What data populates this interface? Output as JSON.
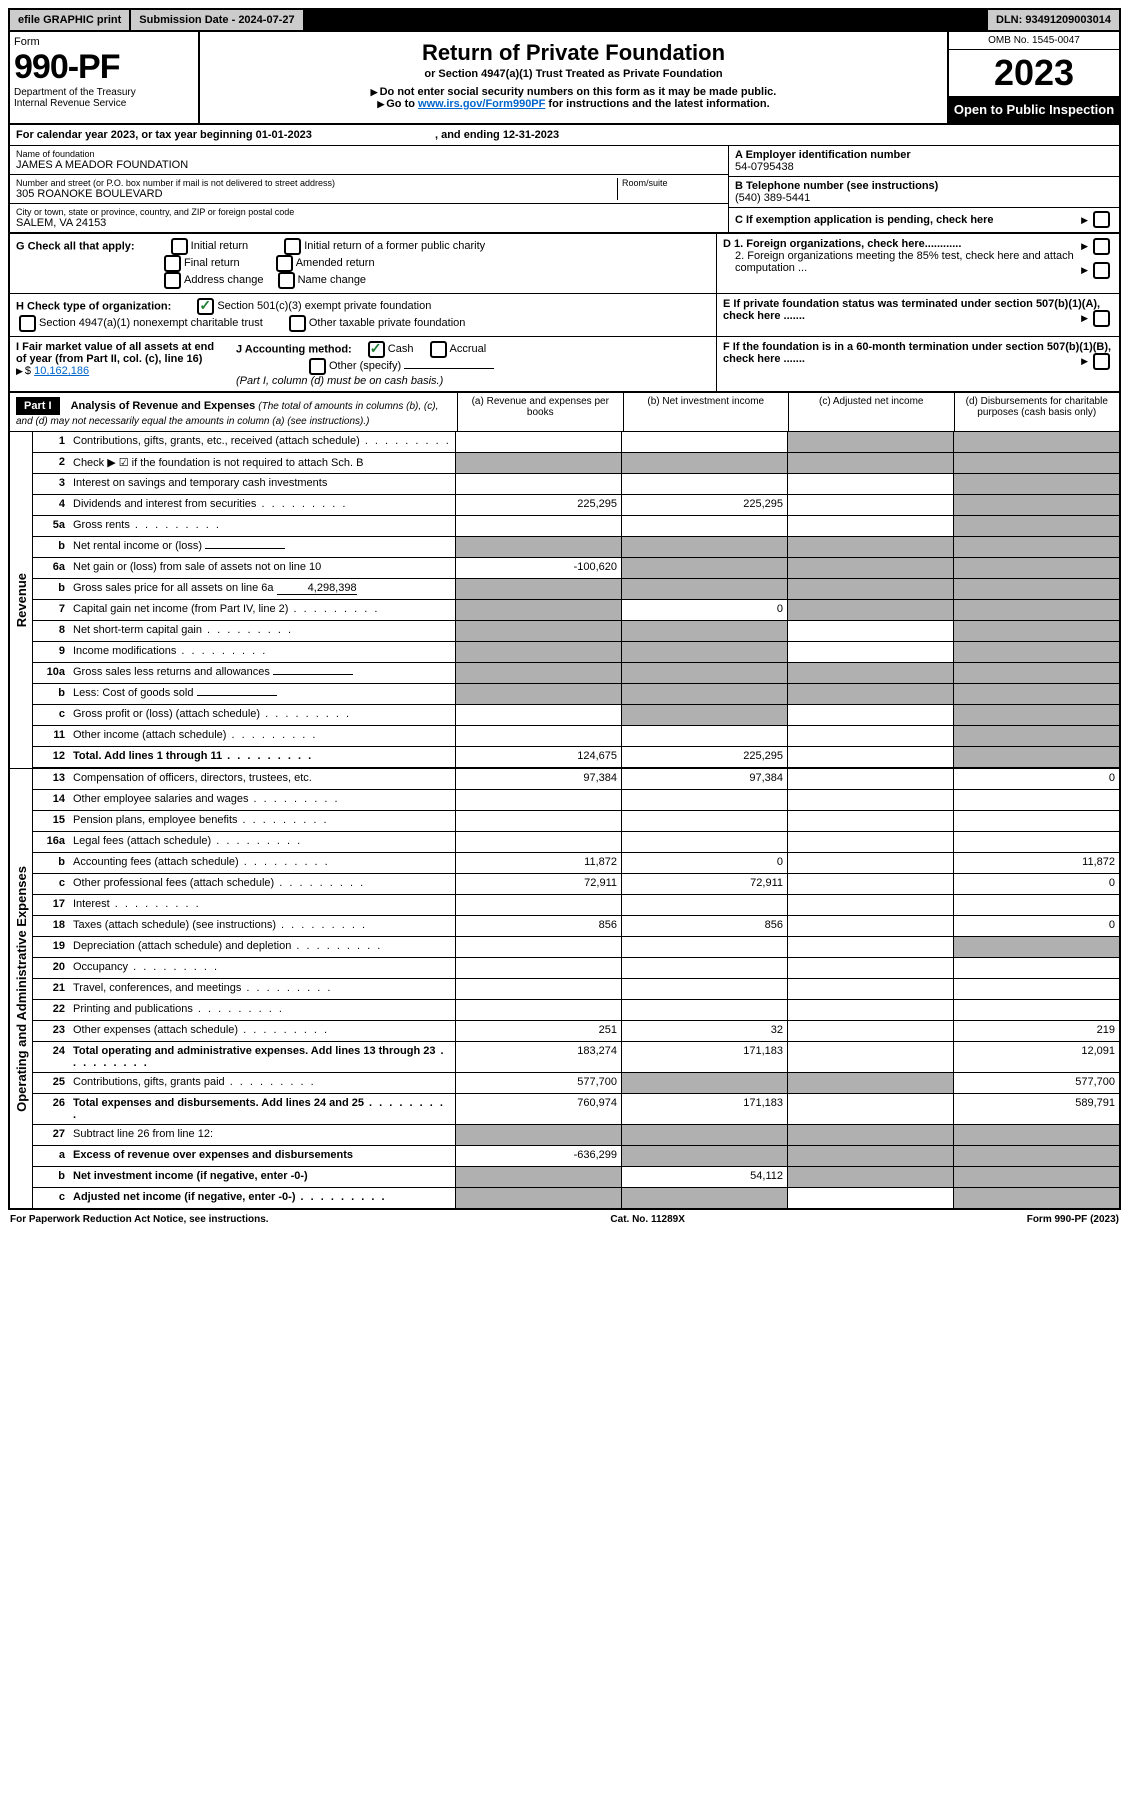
{
  "topbar": {
    "efile": "efile GRAPHIC print",
    "submission": "Submission Date - 2024-07-27",
    "dln": "DLN: 93491209003014"
  },
  "header": {
    "form_label": "Form",
    "form_no": "990-PF",
    "dept": "Department of the Treasury",
    "irs": "Internal Revenue Service",
    "title": "Return of Private Foundation",
    "subtitle": "or Section 4947(a)(1) Trust Treated as Private Foundation",
    "note1": "Do not enter social security numbers on this form as it may be made public.",
    "note2_pre": "Go to ",
    "note2_link": "www.irs.gov/Form990PF",
    "note2_post": " for instructions and the latest information.",
    "omb": "OMB No. 1545-0047",
    "year": "2023",
    "open": "Open to Public Inspection"
  },
  "calyear": {
    "text": "For calendar year 2023, or tax year beginning 01-01-2023",
    "ending": ", and ending 12-31-2023"
  },
  "info": {
    "name_label": "Name of foundation",
    "name": "JAMES A MEADOR FOUNDATION",
    "addr_label": "Number and street (or P.O. box number if mail is not delivered to street address)",
    "addr": "305 ROANOKE BOULEVARD",
    "room_label": "Room/suite",
    "city_label": "City or town, state or province, country, and ZIP or foreign postal code",
    "city": "SALEM, VA  24153",
    "ein_label": "A Employer identification number",
    "ein": "54-0795438",
    "phone_label": "B Telephone number (see instructions)",
    "phone": "(540) 389-5441",
    "c_label": "C If exemption application is pending, check here"
  },
  "checks": {
    "g_label": "G Check all that apply:",
    "g1": "Initial return",
    "g2": "Initial return of a former public charity",
    "g3": "Final return",
    "g4": "Amended return",
    "g5": "Address change",
    "g6": "Name change",
    "h_label": "H Check type of organization:",
    "h1": "Section 501(c)(3) exempt private foundation",
    "h2": "Section 4947(a)(1) nonexempt charitable trust",
    "h3": "Other taxable private foundation",
    "i_label": "I Fair market value of all assets at end of year (from Part II, col. (c), line 16) ",
    "i_val": "10,162,186",
    "j_label": "J Accounting method:",
    "j1": "Cash",
    "j2": "Accrual",
    "j3": "Other (specify)",
    "j_note": "(Part I, column (d) must be on cash basis.)",
    "d1": "D 1. Foreign organizations, check here............",
    "d2": "2. Foreign organizations meeting the 85% test, check here and attach computation ...",
    "e_label": "E  If private foundation status was terminated under section 507(b)(1)(A), check here .......",
    "f_label": "F  If the foundation is in a 60-month termination under section 507(b)(1)(B), check here ......."
  },
  "part1": {
    "label": "Part I",
    "title": "Analysis of Revenue and Expenses",
    "title_note": " (The total of amounts in columns (b), (c), and (d) may not necessarily equal the amounts in column (a) (see instructions).)",
    "col_a": "(a)  Revenue and expenses per books",
    "col_b": "(b)  Net investment income",
    "col_c": "(c)  Adjusted net income",
    "col_d": "(d)  Disbursements for charitable purposes (cash basis only)"
  },
  "side": {
    "revenue": "Revenue",
    "expenses": "Operating and Administrative Expenses"
  },
  "rows": [
    {
      "n": "1",
      "d": "Contributions, gifts, grants, etc., received (attach schedule)",
      "a": "",
      "b": "",
      "c": "g",
      "dd": "g"
    },
    {
      "n": "2",
      "d": "Check ▶ ☑ if the foundation is not required to attach Sch. B",
      "a": "g",
      "b": "g",
      "c": "g",
      "dd": "g",
      "nodots": true
    },
    {
      "n": "3",
      "d": "Interest on savings and temporary cash investments",
      "a": "",
      "b": "",
      "c": "",
      "dd": "g",
      "nodots": true
    },
    {
      "n": "4",
      "d": "Dividends and interest from securities",
      "a": "225,295",
      "b": "225,295",
      "c": "",
      "dd": "g"
    },
    {
      "n": "5a",
      "d": "Gross rents",
      "a": "",
      "b": "",
      "c": "",
      "dd": "g"
    },
    {
      "n": "b",
      "d": "Net rental income or (loss)",
      "a": "g",
      "b": "g",
      "c": "g",
      "dd": "g",
      "nodots": true,
      "inline": true
    },
    {
      "n": "6a",
      "d": "Net gain or (loss) from sale of assets not on line 10",
      "a": "-100,620",
      "b": "g",
      "c": "g",
      "dd": "g",
      "nodots": true
    },
    {
      "n": "b",
      "d": "Gross sales price for all assets on line 6a",
      "a": "g",
      "b": "g",
      "c": "g",
      "dd": "g",
      "nodots": true,
      "inline": true,
      "inlineval": "4,298,398"
    },
    {
      "n": "7",
      "d": "Capital gain net income (from Part IV, line 2)",
      "a": "g",
      "b": "0",
      "c": "g",
      "dd": "g"
    },
    {
      "n": "8",
      "d": "Net short-term capital gain",
      "a": "g",
      "b": "g",
      "c": "",
      "dd": "g"
    },
    {
      "n": "9",
      "d": "Income modifications",
      "a": "g",
      "b": "g",
      "c": "",
      "dd": "g"
    },
    {
      "n": "10a",
      "d": "Gross sales less returns and allowances",
      "a": "g",
      "b": "g",
      "c": "g",
      "dd": "g",
      "nodots": true,
      "inline": true
    },
    {
      "n": "b",
      "d": "Less: Cost of goods sold",
      "a": "g",
      "b": "g",
      "c": "g",
      "dd": "g",
      "inline": true
    },
    {
      "n": "c",
      "d": "Gross profit or (loss) (attach schedule)",
      "a": "",
      "b": "g",
      "c": "",
      "dd": "g"
    },
    {
      "n": "11",
      "d": "Other income (attach schedule)",
      "a": "",
      "b": "",
      "c": "",
      "dd": "g"
    },
    {
      "n": "12",
      "d": "Total. Add lines 1 through 11",
      "a": "124,675",
      "b": "225,295",
      "c": "",
      "dd": "g",
      "bold": true
    },
    {
      "n": "13",
      "d": "Compensation of officers, directors, trustees, etc.",
      "a": "97,384",
      "b": "97,384",
      "c": "",
      "dd": "0",
      "nodots": true
    },
    {
      "n": "14",
      "d": "Other employee salaries and wages",
      "a": "",
      "b": "",
      "c": "",
      "dd": ""
    },
    {
      "n": "15",
      "d": "Pension plans, employee benefits",
      "a": "",
      "b": "",
      "c": "",
      "dd": ""
    },
    {
      "n": "16a",
      "d": "Legal fees (attach schedule)",
      "a": "",
      "b": "",
      "c": "",
      "dd": ""
    },
    {
      "n": "b",
      "d": "Accounting fees (attach schedule)",
      "a": "11,872",
      "b": "0",
      "c": "",
      "dd": "11,872"
    },
    {
      "n": "c",
      "d": "Other professional fees (attach schedule)",
      "a": "72,911",
      "b": "72,911",
      "c": "",
      "dd": "0"
    },
    {
      "n": "17",
      "d": "Interest",
      "a": "",
      "b": "",
      "c": "",
      "dd": ""
    },
    {
      "n": "18",
      "d": "Taxes (attach schedule) (see instructions)",
      "a": "856",
      "b": "856",
      "c": "",
      "dd": "0"
    },
    {
      "n": "19",
      "d": "Depreciation (attach schedule) and depletion",
      "a": "",
      "b": "",
      "c": "",
      "dd": "g"
    },
    {
      "n": "20",
      "d": "Occupancy",
      "a": "",
      "b": "",
      "c": "",
      "dd": ""
    },
    {
      "n": "21",
      "d": "Travel, conferences, and meetings",
      "a": "",
      "b": "",
      "c": "",
      "dd": ""
    },
    {
      "n": "22",
      "d": "Printing and publications",
      "a": "",
      "b": "",
      "c": "",
      "dd": ""
    },
    {
      "n": "23",
      "d": "Other expenses (attach schedule)",
      "a": "251",
      "b": "32",
      "c": "",
      "dd": "219"
    },
    {
      "n": "24",
      "d": "Total operating and administrative expenses. Add lines 13 through 23",
      "a": "183,274",
      "b": "171,183",
      "c": "",
      "dd": "12,091",
      "bold": true
    },
    {
      "n": "25",
      "d": "Contributions, gifts, grants paid",
      "a": "577,700",
      "b": "g",
      "c": "g",
      "dd": "577,700"
    },
    {
      "n": "26",
      "d": "Total expenses and disbursements. Add lines 24 and 25",
      "a": "760,974",
      "b": "171,183",
      "c": "",
      "dd": "589,791",
      "bold": true
    },
    {
      "n": "27",
      "d": "Subtract line 26 from line 12:",
      "a": "g",
      "b": "g",
      "c": "g",
      "dd": "g",
      "nodots": true
    },
    {
      "n": "a",
      "d": "Excess of revenue over expenses and disbursements",
      "a": "-636,299",
      "b": "g",
      "c": "g",
      "dd": "g",
      "bold": true,
      "nodots": true
    },
    {
      "n": "b",
      "d": "Net investment income (if negative, enter -0-)",
      "a": "g",
      "b": "54,112",
      "c": "g",
      "dd": "g",
      "bold": true,
      "nodots": true
    },
    {
      "n": "c",
      "d": "Adjusted net income (if negative, enter -0-)",
      "a": "g",
      "b": "g",
      "c": "",
      "dd": "g",
      "bold": true
    }
  ],
  "footer": {
    "left": "For Paperwork Reduction Act Notice, see instructions.",
    "mid": "Cat. No. 11289X",
    "right": "Form 990-PF (2023)"
  }
}
